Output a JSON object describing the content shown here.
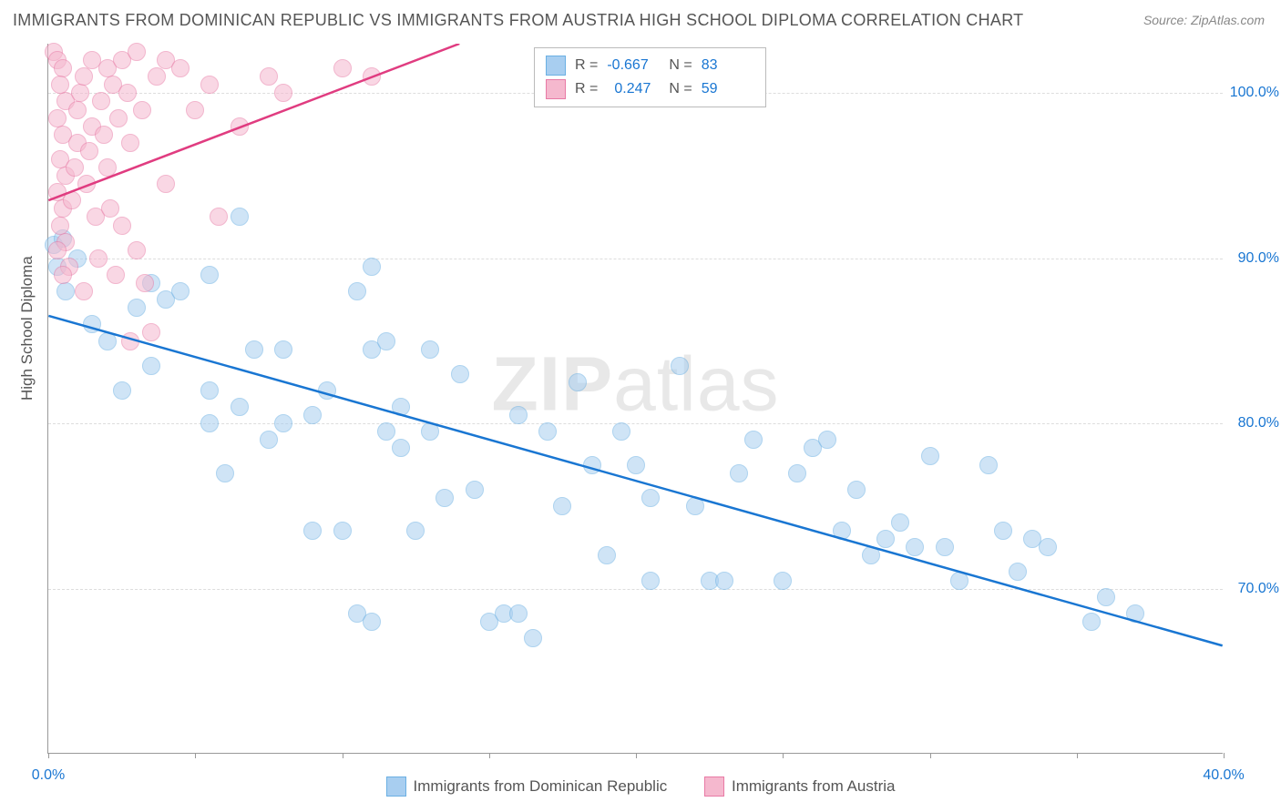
{
  "title": "IMMIGRANTS FROM DOMINICAN REPUBLIC VS IMMIGRANTS FROM AUSTRIA HIGH SCHOOL DIPLOMA CORRELATION CHART",
  "source": "Source: ZipAtlas.com",
  "y_axis_label": "High School Diploma",
  "watermark_bold": "ZIP",
  "watermark_rest": "atlas",
  "chart": {
    "type": "scatter",
    "xlim": [
      0,
      40
    ],
    "ylim": [
      60,
      103
    ],
    "x_ticks": [
      0,
      5,
      10,
      15,
      20,
      25,
      30,
      35,
      40
    ],
    "x_tick_labels": [
      "0.0%",
      "",
      "",
      "",
      "",
      "",
      "",
      "",
      "40.0%"
    ],
    "y_grid": [
      70,
      80,
      90,
      100
    ],
    "y_tick_labels": [
      "70.0%",
      "80.0%",
      "90.0%",
      "100.0%"
    ],
    "background_color": "#ffffff",
    "grid_color": "#dddddd",
    "axis_color": "#999999",
    "marker_radius": 10,
    "marker_opacity": 0.55,
    "series": [
      {
        "name": "Immigrants from Dominican Republic",
        "color_fill": "#a8cef0",
        "color_stroke": "#6bb0e3",
        "trend_color": "#1976d2",
        "R": "-0.667",
        "N": "83",
        "trend": {
          "x1": 0,
          "y1": 86.5,
          "x2": 40,
          "y2": 66.5
        },
        "points": [
          [
            0.2,
            90.8
          ],
          [
            0.5,
            91.2
          ],
          [
            0.3,
            89.5
          ],
          [
            1.0,
            90.0
          ],
          [
            0.6,
            88.0
          ],
          [
            5.5,
            89.0
          ],
          [
            3.5,
            88.5
          ],
          [
            4.0,
            87.5
          ],
          [
            4.5,
            88.0
          ],
          [
            6.5,
            92.5
          ],
          [
            7.0,
            84.5
          ],
          [
            11.0,
            89.5
          ],
          [
            10.5,
            88.0
          ],
          [
            11.0,
            84.5
          ],
          [
            11.5,
            85.0
          ],
          [
            2.0,
            85.0
          ],
          [
            3.0,
            87.0
          ],
          [
            3.5,
            83.5
          ],
          [
            5.5,
            82.0
          ],
          [
            5.5,
            80.0
          ],
          [
            6.5,
            81.0
          ],
          [
            8.0,
            84.5
          ],
          [
            8.0,
            80.0
          ],
          [
            9.0,
            80.5
          ],
          [
            9.0,
            73.5
          ],
          [
            9.5,
            82.0
          ],
          [
            10.0,
            73.5
          ],
          [
            10.5,
            68.5
          ],
          [
            11.0,
            68.0
          ],
          [
            11.5,
            79.5
          ],
          [
            12.0,
            81.0
          ],
          [
            12.0,
            78.5
          ],
          [
            12.5,
            73.5
          ],
          [
            13.0,
            84.5
          ],
          [
            13.0,
            79.5
          ],
          [
            13.5,
            75.5
          ],
          [
            14.0,
            83.0
          ],
          [
            14.5,
            76.0
          ],
          [
            15.0,
            68.0
          ],
          [
            15.5,
            68.5
          ],
          [
            16.0,
            80.5
          ],
          [
            16.0,
            68.5
          ],
          [
            16.5,
            67.0
          ],
          [
            17.0,
            79.5
          ],
          [
            17.5,
            75.0
          ],
          [
            18.0,
            82.5
          ],
          [
            18.5,
            77.5
          ],
          [
            19.0,
            72.0
          ],
          [
            19.5,
            79.5
          ],
          [
            20.0,
            77.5
          ],
          [
            20.5,
            75.5
          ],
          [
            20.5,
            70.5
          ],
          [
            21.5,
            83.5
          ],
          [
            22.0,
            75.0
          ],
          [
            22.5,
            70.5
          ],
          [
            23.0,
            70.5
          ],
          [
            23.5,
            77.0
          ],
          [
            24.0,
            79.0
          ],
          [
            25.0,
            70.5
          ],
          [
            25.5,
            77.0
          ],
          [
            26.0,
            78.5
          ],
          [
            26.5,
            79.0
          ],
          [
            27.0,
            73.5
          ],
          [
            27.5,
            76.0
          ],
          [
            28.0,
            72.0
          ],
          [
            28.5,
            73.0
          ],
          [
            29.0,
            74.0
          ],
          [
            29.5,
            72.5
          ],
          [
            30.0,
            78.0
          ],
          [
            30.5,
            72.5
          ],
          [
            31.0,
            70.5
          ],
          [
            32.0,
            77.5
          ],
          [
            32.5,
            73.5
          ],
          [
            33.0,
            71.0
          ],
          [
            33.5,
            73.0
          ],
          [
            34.0,
            72.5
          ],
          [
            35.5,
            68.0
          ],
          [
            36.0,
            69.5
          ],
          [
            37.0,
            68.5
          ],
          [
            6.0,
            77.0
          ],
          [
            7.5,
            79.0
          ],
          [
            2.5,
            82.0
          ],
          [
            1.5,
            86.0
          ]
        ]
      },
      {
        "name": "Immigrants from Austria",
        "color_fill": "#f5b8ce",
        "color_stroke": "#e87aa5",
        "trend_color": "#e03c80",
        "R": "0.247",
        "N": "59",
        "trend": {
          "x1": 0,
          "y1": 93.5,
          "x2": 14,
          "y2": 103
        },
        "points": [
          [
            0.2,
            102.5
          ],
          [
            0.3,
            102.0
          ],
          [
            0.5,
            101.5
          ],
          [
            0.4,
            100.5
          ],
          [
            0.6,
            99.5
          ],
          [
            0.3,
            98.5
          ],
          [
            0.5,
            97.5
          ],
          [
            0.4,
            96.0
          ],
          [
            0.6,
            95.0
          ],
          [
            0.3,
            94.0
          ],
          [
            0.5,
            93.0
          ],
          [
            0.4,
            92.0
          ],
          [
            0.6,
            91.0
          ],
          [
            0.3,
            90.5
          ],
          [
            0.7,
            89.5
          ],
          [
            0.5,
            89.0
          ],
          [
            0.8,
            93.5
          ],
          [
            0.9,
            95.5
          ],
          [
            1.0,
            97.0
          ],
          [
            1.0,
            99.0
          ],
          [
            1.1,
            100.0
          ],
          [
            1.2,
            101.0
          ],
          [
            1.3,
            94.5
          ],
          [
            1.4,
            96.5
          ],
          [
            1.5,
            98.0
          ],
          [
            1.5,
            102.0
          ],
          [
            1.6,
            92.5
          ],
          [
            1.7,
            90.0
          ],
          [
            1.8,
            99.5
          ],
          [
            1.9,
            97.5
          ],
          [
            2.0,
            101.5
          ],
          [
            2.0,
            95.5
          ],
          [
            2.1,
            93.0
          ],
          [
            2.2,
            100.5
          ],
          [
            2.3,
            89.0
          ],
          [
            2.4,
            98.5
          ],
          [
            2.5,
            102.0
          ],
          [
            2.5,
            92.0
          ],
          [
            2.7,
            100.0
          ],
          [
            2.8,
            97.0
          ],
          [
            3.0,
            102.5
          ],
          [
            3.0,
            90.5
          ],
          [
            3.2,
            99.0
          ],
          [
            3.3,
            88.5
          ],
          [
            3.5,
            85.5
          ],
          [
            3.7,
            101.0
          ],
          [
            4.0,
            102.0
          ],
          [
            4.0,
            94.5
          ],
          [
            4.5,
            101.5
          ],
          [
            5.0,
            99.0
          ],
          [
            5.5,
            100.5
          ],
          [
            5.8,
            92.5
          ],
          [
            6.5,
            98.0
          ],
          [
            7.5,
            101.0
          ],
          [
            8.0,
            100.0
          ],
          [
            10.0,
            101.5
          ],
          [
            11.0,
            101.0
          ],
          [
            2.8,
            85.0
          ],
          [
            1.2,
            88.0
          ]
        ]
      }
    ]
  },
  "legend_top": {
    "R_label": "R =",
    "N_label": "N ="
  }
}
